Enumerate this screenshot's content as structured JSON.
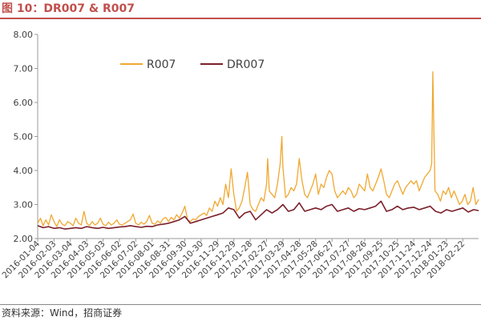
{
  "figure": {
    "title": "图 10：DR007 & R007",
    "source": "资料来源：Wind，招商证券"
  },
  "chart_data": {
    "type": "line",
    "title": "",
    "xlabel": "",
    "ylabel": "",
    "ylim": [
      2.0,
      8.0
    ],
    "yticks": [
      "2.00",
      "3.00",
      "4.00",
      "5.00",
      "6.00",
      "7.00",
      "8.00"
    ],
    "grid": false,
    "legend_position": "top-center",
    "x_tick_labels": [
      "2016-01-04",
      "2016-02-03",
      "2016-03-04",
      "2016-04-03",
      "2016-05-03",
      "2016-06-02",
      "2016-07-02",
      "2016-08-01",
      "2016-08-31",
      "2016-09-30",
      "2016-10-30",
      "2016-11-29",
      "2016-12-29",
      "2017-01-28",
      "2017-02-27",
      "2017-03-29",
      "2017-04-28",
      "2017-05-28",
      "2017-06-27",
      "2017-07-27",
      "2017-08-26",
      "2017-09-25",
      "2017-10-25",
      "2017-11-24",
      "2017-12-24",
      "2018-01-23",
      "2018-02-22"
    ],
    "x_range": [
      "2016-01-04",
      "2018-03-23"
    ],
    "series": [
      {
        "name": "R007",
        "color": "#F0A830",
        "points": [
          [
            "2016-01-04",
            2.45
          ],
          [
            "2016-01-09",
            2.6
          ],
          [
            "2016-01-14",
            2.38
          ],
          [
            "2016-01-19",
            2.55
          ],
          [
            "2016-01-24",
            2.4
          ],
          [
            "2016-01-29",
            2.7
          ],
          [
            "2016-02-03",
            2.5
          ],
          [
            "2016-02-08",
            2.35
          ],
          [
            "2016-02-13",
            2.55
          ],
          [
            "2016-02-18",
            2.42
          ],
          [
            "2016-02-23",
            2.38
          ],
          [
            "2016-02-28",
            2.5
          ],
          [
            "2016-03-04",
            2.45
          ],
          [
            "2016-03-09",
            2.38
          ],
          [
            "2016-03-14",
            2.6
          ],
          [
            "2016-03-19",
            2.45
          ],
          [
            "2016-03-24",
            2.4
          ],
          [
            "2016-03-29",
            2.8
          ],
          [
            "2016-04-03",
            2.45
          ],
          [
            "2016-04-08",
            2.38
          ],
          [
            "2016-04-13",
            2.5
          ],
          [
            "2016-04-18",
            2.4
          ],
          [
            "2016-04-23",
            2.45
          ],
          [
            "2016-04-28",
            2.6
          ],
          [
            "2016-05-03",
            2.42
          ],
          [
            "2016-05-08",
            2.38
          ],
          [
            "2016-05-13",
            2.48
          ],
          [
            "2016-05-18",
            2.4
          ],
          [
            "2016-05-23",
            2.45
          ],
          [
            "2016-05-28",
            2.55
          ],
          [
            "2016-06-02",
            2.42
          ],
          [
            "2016-06-07",
            2.4
          ],
          [
            "2016-06-12",
            2.45
          ],
          [
            "2016-06-17",
            2.5
          ],
          [
            "2016-06-22",
            2.55
          ],
          [
            "2016-06-27",
            2.72
          ],
          [
            "2016-07-02",
            2.45
          ],
          [
            "2016-07-07",
            2.4
          ],
          [
            "2016-07-12",
            2.48
          ],
          [
            "2016-07-17",
            2.42
          ],
          [
            "2016-07-22",
            2.5
          ],
          [
            "2016-07-27",
            2.68
          ],
          [
            "2016-08-01",
            2.45
          ],
          [
            "2016-08-06",
            2.42
          ],
          [
            "2016-08-11",
            2.52
          ],
          [
            "2016-08-16",
            2.45
          ],
          [
            "2016-08-21",
            2.58
          ],
          [
            "2016-08-26",
            2.62
          ],
          [
            "2016-08-31",
            2.5
          ],
          [
            "2016-09-05",
            2.62
          ],
          [
            "2016-09-10",
            2.55
          ],
          [
            "2016-09-15",
            2.7
          ],
          [
            "2016-09-20",
            2.6
          ],
          [
            "2016-09-25",
            2.75
          ],
          [
            "2016-09-30",
            2.95
          ],
          [
            "2016-10-05",
            2.55
          ],
          [
            "2016-10-10",
            2.5
          ],
          [
            "2016-10-15",
            2.58
          ],
          [
            "2016-10-20",
            2.55
          ],
          [
            "2016-10-25",
            2.65
          ],
          [
            "2016-10-30",
            2.7
          ],
          [
            "2016-11-04",
            2.75
          ],
          [
            "2016-11-09",
            2.68
          ],
          [
            "2016-11-14",
            2.9
          ],
          [
            "2016-11-19",
            2.8
          ],
          [
            "2016-11-24",
            3.1
          ],
          [
            "2016-11-29",
            2.95
          ],
          [
            "2016-12-04",
            3.2
          ],
          [
            "2016-12-09",
            3.0
          ],
          [
            "2016-12-14",
            3.6
          ],
          [
            "2016-12-19",
            3.2
          ],
          [
            "2016-12-24",
            4.05
          ],
          [
            "2016-12-29",
            3.3
          ],
          [
            "2017-01-03",
            2.8
          ],
          [
            "2017-01-08",
            2.9
          ],
          [
            "2017-01-13",
            3.1
          ],
          [
            "2017-01-18",
            3.5
          ],
          [
            "2017-01-23",
            3.95
          ],
          [
            "2017-01-28",
            3.0
          ],
          [
            "2017-02-02",
            2.85
          ],
          [
            "2017-02-07",
            2.8
          ],
          [
            "2017-02-12",
            3.0
          ],
          [
            "2017-02-17",
            3.2
          ],
          [
            "2017-02-22",
            3.1
          ],
          [
            "2017-02-27",
            3.6
          ],
          [
            "2017-03-01",
            4.35
          ],
          [
            "2017-03-04",
            3.4
          ],
          [
            "2017-03-09",
            3.3
          ],
          [
            "2017-03-14",
            3.2
          ],
          [
            "2017-03-19",
            3.6
          ],
          [
            "2017-03-24",
            4.2
          ],
          [
            "2017-03-27",
            5.0
          ],
          [
            "2017-03-29",
            4.1
          ],
          [
            "2017-04-03",
            3.2
          ],
          [
            "2017-04-08",
            3.3
          ],
          [
            "2017-04-13",
            3.5
          ],
          [
            "2017-04-18",
            3.4
          ],
          [
            "2017-04-23",
            3.6
          ],
          [
            "2017-04-28",
            4.35
          ],
          [
            "2017-05-03",
            3.7
          ],
          [
            "2017-05-08",
            3.3
          ],
          [
            "2017-05-13",
            3.2
          ],
          [
            "2017-05-18",
            3.4
          ],
          [
            "2017-05-23",
            3.6
          ],
          [
            "2017-05-28",
            3.9
          ],
          [
            "2017-06-02",
            3.3
          ],
          [
            "2017-06-07",
            3.6
          ],
          [
            "2017-06-12",
            3.5
          ],
          [
            "2017-06-17",
            3.8
          ],
          [
            "2017-06-22",
            4.0
          ],
          [
            "2017-06-27",
            3.9
          ],
          [
            "2017-07-02",
            3.4
          ],
          [
            "2017-07-07",
            3.2
          ],
          [
            "2017-07-12",
            3.3
          ],
          [
            "2017-07-17",
            3.4
          ],
          [
            "2017-07-22",
            3.3
          ],
          [
            "2017-07-27",
            3.5
          ],
          [
            "2017-08-01",
            3.4
          ],
          [
            "2017-08-06",
            3.2
          ],
          [
            "2017-08-11",
            3.3
          ],
          [
            "2017-08-16",
            3.6
          ],
          [
            "2017-08-21",
            3.5
          ],
          [
            "2017-08-26",
            3.4
          ],
          [
            "2017-08-31",
            3.9
          ],
          [
            "2017-09-05",
            3.5
          ],
          [
            "2017-09-10",
            3.4
          ],
          [
            "2017-09-15",
            3.6
          ],
          [
            "2017-09-20",
            3.8
          ],
          [
            "2017-09-25",
            4.05
          ],
          [
            "2017-09-30",
            3.7
          ],
          [
            "2017-10-05",
            3.3
          ],
          [
            "2017-10-10",
            3.2
          ],
          [
            "2017-10-15",
            3.4
          ],
          [
            "2017-10-20",
            3.6
          ],
          [
            "2017-10-25",
            3.7
          ],
          [
            "2017-10-30",
            3.5
          ],
          [
            "2017-11-04",
            3.3
          ],
          [
            "2017-11-09",
            3.5
          ],
          [
            "2017-11-14",
            3.6
          ],
          [
            "2017-11-19",
            3.7
          ],
          [
            "2017-11-24",
            3.6
          ],
          [
            "2017-11-29",
            3.7
          ],
          [
            "2017-12-04",
            3.4
          ],
          [
            "2017-12-09",
            3.6
          ],
          [
            "2017-12-14",
            3.8
          ],
          [
            "2017-12-19",
            3.9
          ],
          [
            "2017-12-24",
            4.0
          ],
          [
            "2017-12-27",
            4.2
          ],
          [
            "2017-12-29",
            6.9
          ],
          [
            "2018-01-02",
            3.4
          ],
          [
            "2018-01-07",
            3.3
          ],
          [
            "2018-01-12",
            3.1
          ],
          [
            "2018-01-17",
            3.4
          ],
          [
            "2018-01-22",
            3.3
          ],
          [
            "2018-01-27",
            3.5
          ],
          [
            "2018-02-01",
            3.2
          ],
          [
            "2018-02-06",
            3.4
          ],
          [
            "2018-02-11",
            3.2
          ],
          [
            "2018-02-16",
            3.0
          ],
          [
            "2018-02-21",
            3.1
          ],
          [
            "2018-02-26",
            3.3
          ],
          [
            "2018-03-03",
            3.0
          ],
          [
            "2018-03-08",
            3.1
          ],
          [
            "2018-03-13",
            3.5
          ],
          [
            "2018-03-18",
            3.0
          ],
          [
            "2018-03-23",
            3.15
          ]
        ]
      },
      {
        "name": "DR007",
        "color": "#7B1F2A",
        "points": [
          [
            "2016-01-04",
            2.38
          ],
          [
            "2016-01-14",
            2.32
          ],
          [
            "2016-01-24",
            2.35
          ],
          [
            "2016-02-03",
            2.3
          ],
          [
            "2016-02-13",
            2.32
          ],
          [
            "2016-02-23",
            2.28
          ],
          [
            "2016-03-04",
            2.3
          ],
          [
            "2016-03-14",
            2.32
          ],
          [
            "2016-03-24",
            2.3
          ],
          [
            "2016-04-03",
            2.35
          ],
          [
            "2016-04-13",
            2.32
          ],
          [
            "2016-04-23",
            2.3
          ],
          [
            "2016-05-03",
            2.33
          ],
          [
            "2016-05-13",
            2.3
          ],
          [
            "2016-05-23",
            2.32
          ],
          [
            "2016-06-02",
            2.34
          ],
          [
            "2016-06-12",
            2.35
          ],
          [
            "2016-06-22",
            2.38
          ],
          [
            "2016-07-02",
            2.35
          ],
          [
            "2016-07-12",
            2.33
          ],
          [
            "2016-07-22",
            2.36
          ],
          [
            "2016-08-01",
            2.35
          ],
          [
            "2016-08-11",
            2.4
          ],
          [
            "2016-08-21",
            2.42
          ],
          [
            "2016-08-31",
            2.45
          ],
          [
            "2016-09-10",
            2.5
          ],
          [
            "2016-09-20",
            2.55
          ],
          [
            "2016-09-30",
            2.65
          ],
          [
            "2016-10-10",
            2.45
          ],
          [
            "2016-10-20",
            2.5
          ],
          [
            "2016-10-30",
            2.55
          ],
          [
            "2016-11-09",
            2.6
          ],
          [
            "2016-11-19",
            2.65
          ],
          [
            "2016-11-29",
            2.7
          ],
          [
            "2016-12-09",
            2.75
          ],
          [
            "2016-12-19",
            2.9
          ],
          [
            "2016-12-29",
            2.85
          ],
          [
            "2017-01-08",
            2.6
          ],
          [
            "2017-01-18",
            2.75
          ],
          [
            "2017-01-28",
            2.8
          ],
          [
            "2017-02-07",
            2.55
          ],
          [
            "2017-02-17",
            2.7
          ],
          [
            "2017-02-27",
            2.85
          ],
          [
            "2017-03-09",
            2.75
          ],
          [
            "2017-03-19",
            2.85
          ],
          [
            "2017-03-29",
            3.0
          ],
          [
            "2017-04-08",
            2.8
          ],
          [
            "2017-04-18",
            2.85
          ],
          [
            "2017-04-28",
            3.05
          ],
          [
            "2017-05-08",
            2.8
          ],
          [
            "2017-05-18",
            2.85
          ],
          [
            "2017-05-28",
            2.9
          ],
          [
            "2017-06-07",
            2.85
          ],
          [
            "2017-06-17",
            2.95
          ],
          [
            "2017-06-27",
            3.0
          ],
          [
            "2017-07-07",
            2.8
          ],
          [
            "2017-07-17",
            2.85
          ],
          [
            "2017-07-27",
            2.9
          ],
          [
            "2017-08-06",
            2.8
          ],
          [
            "2017-08-16",
            2.88
          ],
          [
            "2017-08-26",
            2.85
          ],
          [
            "2017-09-05",
            2.9
          ],
          [
            "2017-09-15",
            2.95
          ],
          [
            "2017-09-25",
            3.1
          ],
          [
            "2017-10-05",
            2.8
          ],
          [
            "2017-10-15",
            2.85
          ],
          [
            "2017-10-25",
            2.95
          ],
          [
            "2017-11-04",
            2.85
          ],
          [
            "2017-11-14",
            2.9
          ],
          [
            "2017-11-24",
            2.92
          ],
          [
            "2017-12-04",
            2.85
          ],
          [
            "2017-12-14",
            2.9
          ],
          [
            "2017-12-24",
            2.95
          ],
          [
            "2018-01-03",
            2.8
          ],
          [
            "2018-01-13",
            2.75
          ],
          [
            "2018-01-23",
            2.85
          ],
          [
            "2018-02-02",
            2.8
          ],
          [
            "2018-02-12",
            2.85
          ],
          [
            "2018-02-22",
            2.9
          ],
          [
            "2018-03-04",
            2.78
          ],
          [
            "2018-03-14",
            2.85
          ],
          [
            "2018-03-23",
            2.82
          ]
        ]
      }
    ]
  }
}
